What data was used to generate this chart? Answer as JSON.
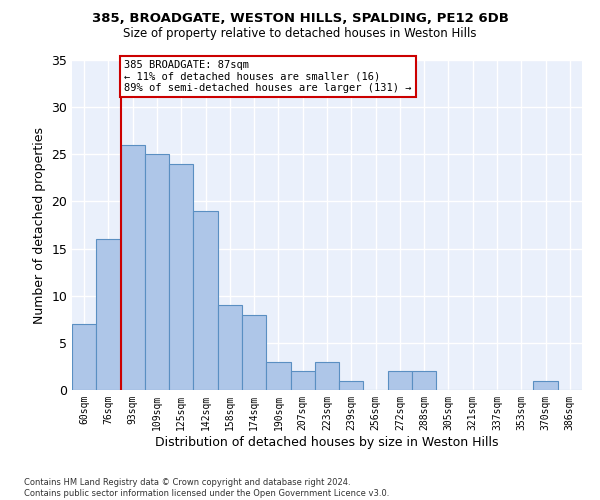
{
  "title1": "385, BROADGATE, WESTON HILLS, SPALDING, PE12 6DB",
  "title2": "Size of property relative to detached houses in Weston Hills",
  "xlabel": "Distribution of detached houses by size in Weston Hills",
  "ylabel": "Number of detached properties",
  "footnote": "Contains HM Land Registry data © Crown copyright and database right 2024.\nContains public sector information licensed under the Open Government Licence v3.0.",
  "bin_labels": [
    "60sqm",
    "76sqm",
    "93sqm",
    "109sqm",
    "125sqm",
    "142sqm",
    "158sqm",
    "174sqm",
    "190sqm",
    "207sqm",
    "223sqm",
    "239sqm",
    "256sqm",
    "272sqm",
    "288sqm",
    "305sqm",
    "321sqm",
    "337sqm",
    "353sqm",
    "370sqm",
    "386sqm"
  ],
  "bar_values": [
    7,
    16,
    26,
    25,
    24,
    19,
    9,
    8,
    3,
    2,
    3,
    1,
    0,
    2,
    2,
    0,
    0,
    0,
    0,
    1,
    0
  ],
  "bar_color": "#aec6e8",
  "bar_edge_color": "#5a8fc2",
  "background_color": "#eaf0fb",
  "grid_color": "#ffffff",
  "red_line_x": 1.5,
  "annotation_text": "385 BROADGATE: 87sqm\n← 11% of detached houses are smaller (16)\n89% of semi-detached houses are larger (131) →",
  "annotation_box_color": "#ffffff",
  "annotation_box_edge": "#cc0000",
  "ylim": [
    0,
    35
  ],
  "yticks": [
    0,
    5,
    10,
    15,
    20,
    25,
    30,
    35
  ]
}
